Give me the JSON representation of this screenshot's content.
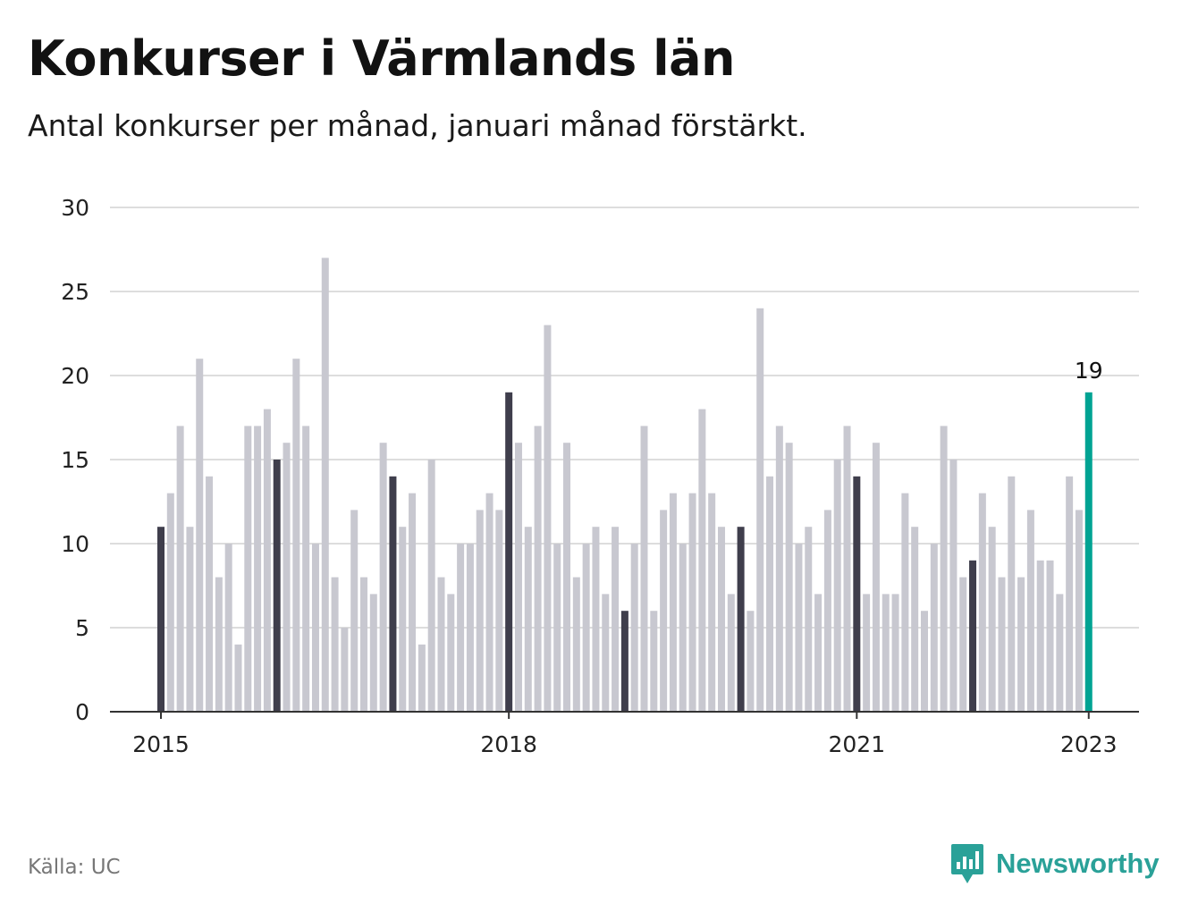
{
  "title": "Konkurser i Värmlands län",
  "subtitle": "Antal konkurser per månad, januari månad förstärkt.",
  "source": "Källa: UC",
  "brand": "Newsworthy",
  "colors": {
    "bar": "#c8c8d0",
    "january": "#3f3e4c",
    "latest": "#00a393",
    "grid": "#dddddd",
    "axis": "#333333",
    "brand": "#2aa198"
  },
  "chart_data": {
    "type": "bar",
    "title": "Konkurser i Värmlands län",
    "xlabel": "",
    "ylabel": "",
    "ylim": [
      0,
      30
    ],
    "yticks": [
      "0",
      "5",
      "10",
      "15",
      "20",
      "25",
      "30"
    ],
    "xticks": [
      {
        "label": "2015",
        "index": 0
      },
      {
        "label": "2018",
        "index": 36
      },
      {
        "label": "2021",
        "index": 72
      },
      {
        "label": "2023",
        "index": 96
      }
    ],
    "start": "2015-01",
    "grid": true,
    "values": [
      11,
      13,
      17,
      11,
      21,
      14,
      8,
      10,
      4,
      17,
      17,
      18,
      15,
      16,
      21,
      17,
      10,
      27,
      8,
      5,
      12,
      8,
      7,
      16,
      14,
      11,
      13,
      4,
      15,
      8,
      7,
      10,
      10,
      12,
      13,
      12,
      19,
      16,
      11,
      17,
      23,
      10,
      16,
      8,
      10,
      11,
      7,
      11,
      6,
      10,
      17,
      6,
      12,
      13,
      10,
      13,
      18,
      13,
      11,
      7,
      11,
      6,
      24,
      14,
      17,
      16,
      10,
      11,
      7,
      12,
      15,
      17,
      14,
      7,
      16,
      7,
      7,
      13,
      11,
      6,
      10,
      17,
      15,
      8,
      9,
      13,
      11,
      8,
      14,
      8,
      12,
      9,
      9,
      7,
      14,
      12,
      19
    ],
    "annotation": {
      "label": "19",
      "index": 96
    }
  }
}
